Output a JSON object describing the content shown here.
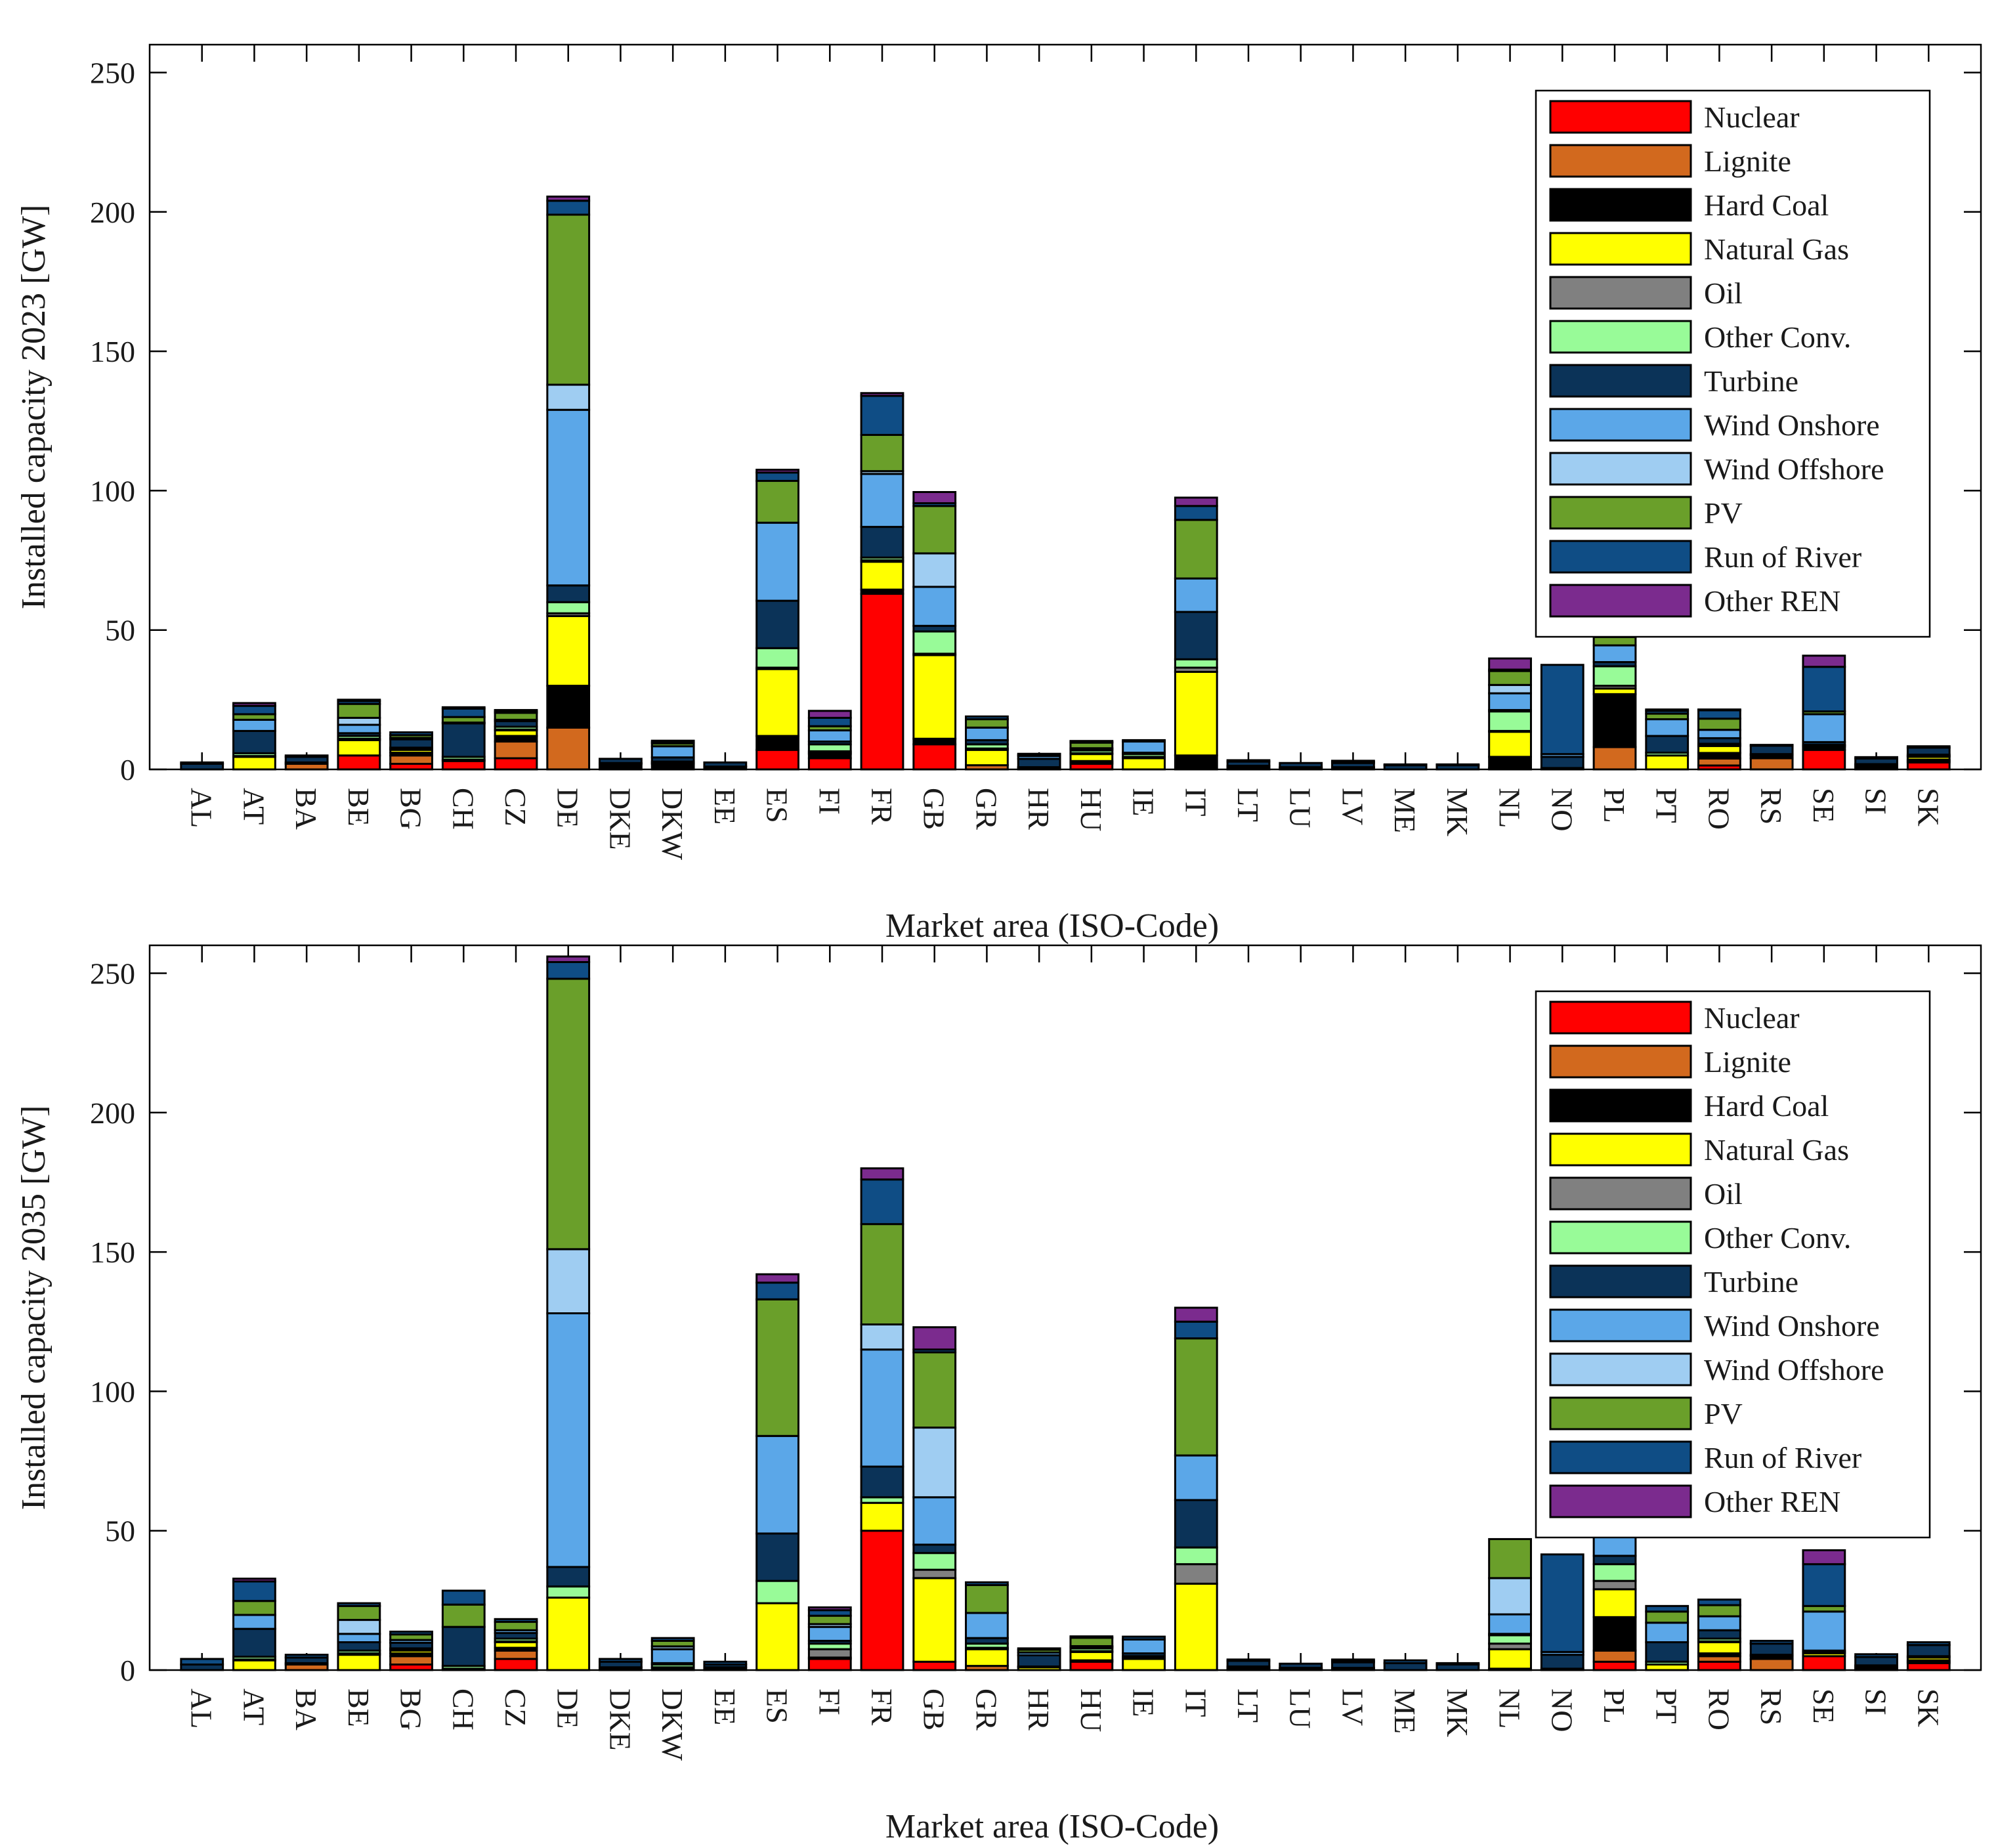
{
  "legend": [
    {
      "name": "Nuclear",
      "color": "#ff0000"
    },
    {
      "name": "Lignite",
      "color": "#d2691e"
    },
    {
      "name": "Hard Coal",
      "color": "#000000"
    },
    {
      "name": "Natural Gas",
      "color": "#ffff00"
    },
    {
      "name": "Oil",
      "color": "#808080"
    },
    {
      "name": "Other Conv.",
      "color": "#98fb98"
    },
    {
      "name": "Turbine",
      "color": "#0b3358"
    },
    {
      "name": "Wind Onshore",
      "color": "#5ba7e8"
    },
    {
      "name": "Wind Offshore",
      "color": "#9fcdf2"
    },
    {
      "name": "PV",
      "color": "#6a9f2a"
    },
    {
      "name": "Run of River",
      "color": "#0f4d85"
    },
    {
      "name": "Other REN",
      "color": "#7b2b8e"
    }
  ],
  "chart_data": [
    {
      "type": "bar",
      "stacked": true,
      "title": "",
      "xlabel": "Market area (ISO-Code)",
      "ylabel": "Installed capacity 2023 [GW]",
      "ylim": [
        0,
        260
      ],
      "yticks": [
        0,
        50,
        100,
        150,
        200,
        250
      ],
      "legend_position": "top-right",
      "categories": [
        "AL",
        "AT",
        "BA",
        "BE",
        "BG",
        "CH",
        "CZ",
        "DE",
        "DKE",
        "DKW",
        "EE",
        "ES",
        "FI",
        "FR",
        "GB",
        "GR",
        "HR",
        "HU",
        "IE",
        "IT",
        "LT",
        "LU",
        "LV",
        "ME",
        "MK",
        "NL",
        "NO",
        "PL",
        "PT",
        "RO",
        "RS",
        "SE",
        "SI",
        "SK"
      ],
      "series": [
        {
          "name": "Nuclear",
          "values": [
            0,
            0,
            0,
            5,
            2,
            3,
            4,
            0,
            0,
            0,
            0,
            7,
            4,
            63,
            9,
            0,
            0,
            2,
            0,
            0,
            0,
            0,
            0,
            0,
            0,
            0.5,
            0,
            0,
            0,
            1.4,
            0,
            7,
            0.7,
            2.5
          ]
        },
        {
          "name": "Lignite",
          "values": [
            0,
            0,
            2,
            0,
            3,
            0,
            6,
            15,
            0,
            0,
            0,
            0,
            0,
            0,
            0,
            1.5,
            0,
            0.5,
            0,
            0,
            0,
            0,
            0,
            0,
            0,
            0,
            0,
            8,
            0,
            2.5,
            4,
            0,
            0.7,
            0.5
          ]
        },
        {
          "name": "Hard Coal",
          "values": [
            0,
            0,
            0.5,
            0,
            1,
            0,
            2,
            15,
            2,
            2,
            1,
            5,
            1.5,
            1.5,
            2,
            0,
            0,
            0.5,
            0,
            5,
            0.5,
            0,
            0.5,
            0,
            0,
            4,
            0,
            19,
            0,
            2,
            1,
            1,
            0.5,
            0.5
          ]
        },
        {
          "name": "Natural Gas",
          "values": [
            0,
            4.5,
            0,
            5.5,
            1,
            0.5,
            2,
            25,
            0,
            0,
            0,
            24,
            0.5,
            10,
            30,
            5.5,
            0.5,
            2.5,
            4,
            30,
            0.5,
            0.5,
            0,
            0,
            0,
            9,
            0.5,
            2,
            5,
            2.5,
            0.5,
            0.5,
            0,
            1
          ]
        },
        {
          "name": "Oil",
          "values": [
            0,
            0.3,
            0,
            0.5,
            0.3,
            0,
            0.3,
            1,
            0.3,
            0.3,
            0,
            0.5,
            0.5,
            0.5,
            0.5,
            0.5,
            0,
            0.3,
            0.5,
            1.5,
            0,
            0,
            0,
            0,
            0,
            0.3,
            0,
            1,
            0,
            0.3,
            0,
            0.3,
            0,
            0.3
          ]
        },
        {
          "name": "Other Conv.",
          "values": [
            0,
            1,
            0,
            1,
            0.5,
            1,
            1,
            4,
            0,
            0.5,
            0,
            7,
            2.5,
            1,
            8,
            1.5,
            0.3,
            1,
            1,
            3,
            0.3,
            0.3,
            0.3,
            0,
            0,
            7,
            0,
            7,
            1,
            0.5,
            0,
            0,
            0,
            0.5
          ]
        },
        {
          "name": "Turbine",
          "values": [
            2,
            8,
            2,
            1,
            3,
            12,
            2,
            6,
            1.5,
            1.5,
            1.5,
            17,
            1,
            11,
            2,
            1.5,
            3,
            0.5,
            0.5,
            17,
            1.5,
            1.5,
            1.5,
            1.5,
            1.5,
            0.5,
            4,
            1.5,
            6,
            2,
            3,
            1,
            2,
            2.5
          ]
        },
        {
          "name": "Wind Onshore",
          "values": [
            0,
            4,
            0,
            3,
            0.5,
            0.3,
            0.5,
            63,
            0,
            4,
            0,
            28,
            4,
            19,
            14,
            4.5,
            1,
            0.3,
            4,
            12,
            0,
            0,
            0,
            0,
            0,
            6,
            1,
            6,
            6,
            3,
            0,
            10,
            0,
            0
          ]
        },
        {
          "name": "Wind Offshore",
          "values": [
            0,
            0,
            0,
            2.5,
            0,
            0,
            0,
            9,
            0,
            0,
            0,
            0,
            0,
            1,
            12,
            0,
            0,
            0,
            0,
            0,
            0,
            0,
            0,
            0,
            0,
            3,
            0,
            0,
            0,
            0,
            0,
            0,
            0,
            0
          ]
        },
        {
          "name": "PV",
          "values": [
            0,
            2,
            0,
            5,
            1,
            2,
            2.5,
            61,
            0,
            1,
            0,
            15,
            1.5,
            13,
            17,
            3,
            0.5,
            2,
            0,
            21,
            0.5,
            0,
            0.5,
            0,
            0,
            5,
            0,
            3,
            2,
            4,
            0,
            1,
            0,
            0
          ]
        },
        {
          "name": "Run of River",
          "values": [
            0.5,
            3,
            0.5,
            1,
            1,
            3,
            0.5,
            5,
            0,
            0.5,
            0,
            3,
            3,
            14,
            1,
            1,
            0.3,
            0.3,
            0.5,
            5,
            0,
            0,
            0.3,
            0.3,
            0.3,
            0.5,
            32,
            0.3,
            1,
            3,
            0.3,
            16,
            0.5,
            0.5
          ]
        },
        {
          "name": "Other REN",
          "values": [
            0,
            1,
            0,
            0.5,
            0,
            0.5,
            0.5,
            1.5,
            0,
            0.5,
            0,
            1,
            2.5,
            1,
            4,
            0,
            0,
            0.3,
            0,
            3,
            0,
            0,
            0,
            0,
            0,
            4,
            0,
            2,
            0.5,
            0.3,
            0,
            4,
            0,
            0
          ]
        }
      ]
    },
    {
      "type": "bar",
      "stacked": true,
      "title": "",
      "xlabel": "Market area (ISO-Code)",
      "ylabel": "Installed capacity 2035 [GW]",
      "ylim": [
        0,
        260
      ],
      "yticks": [
        0,
        50,
        100,
        150,
        200,
        250
      ],
      "legend_position": "top-right",
      "categories": [
        "AL",
        "AT",
        "BA",
        "BE",
        "BG",
        "CH",
        "CZ",
        "DE",
        "DKE",
        "DKW",
        "EE",
        "ES",
        "FI",
        "FR",
        "GB",
        "GR",
        "HR",
        "HU",
        "IE",
        "IT",
        "LT",
        "LU",
        "LV",
        "ME",
        "MK",
        "NL",
        "NO",
        "PL",
        "PT",
        "RO",
        "RS",
        "SE",
        "SI",
        "SK"
      ],
      "series": [
        {
          "name": "Nuclear",
          "values": [
            0,
            0,
            0,
            0,
            2,
            0,
            4,
            0,
            0,
            0,
            0,
            0,
            4,
            50,
            3,
            0,
            0,
            3,
            0,
            0,
            0,
            0,
            0,
            0,
            0,
            0.5,
            0,
            3,
            0,
            3,
            0,
            5,
            0.7,
            2.5
          ]
        },
        {
          "name": "Lignite",
          "values": [
            0,
            0,
            2,
            0,
            3,
            0,
            3,
            0,
            0,
            0,
            0,
            0,
            0,
            0,
            0,
            1.5,
            0,
            0.5,
            0,
            0,
            0,
            0,
            0,
            0,
            0,
            0,
            0,
            4,
            0,
            2,
            4,
            0,
            0.5,
            0.5
          ]
        },
        {
          "name": "Hard Coal",
          "values": [
            0,
            0,
            0.5,
            0,
            1,
            0,
            1,
            0,
            1,
            1,
            1,
            0,
            0,
            0,
            0,
            0,
            0,
            0,
            0,
            0,
            0.5,
            0,
            0.5,
            0,
            0,
            0,
            0,
            12,
            0,
            1,
            1,
            0,
            0.5,
            0.5
          ]
        },
        {
          "name": "Natural Gas",
          "values": [
            0,
            3.5,
            0,
            5.5,
            1,
            0.5,
            2,
            26,
            0,
            0,
            0,
            24,
            0.5,
            10,
            30,
            6,
            1,
            3,
            4,
            31,
            0.5,
            0.5,
            0,
            0,
            0,
            7,
            0.5,
            10,
            2,
            4,
            0.5,
            1,
            0,
            1
          ]
        },
        {
          "name": "Oil",
          "values": [
            0,
            0.3,
            0,
            0.5,
            0.3,
            0,
            0.3,
            0,
            0,
            0,
            0,
            0,
            3,
            0,
            3,
            0.5,
            0,
            0.3,
            0.5,
            7,
            0,
            0,
            0,
            0,
            0,
            2,
            0,
            3,
            0,
            0.3,
            0,
            0,
            0,
            0
          ]
        },
        {
          "name": "Other Conv.",
          "values": [
            0,
            1,
            0,
            1,
            0.5,
            1,
            1,
            4,
            0,
            1,
            0,
            8,
            2,
            2,
            6,
            1.5,
            0.3,
            1,
            0.5,
            6,
            0.3,
            0.3,
            0.3,
            0,
            0,
            3,
            0,
            6,
            1,
            1,
            0,
            0.5,
            0,
            0.5
          ]
        },
        {
          "name": "Turbine",
          "values": [
            2,
            10,
            2,
            3,
            2,
            14,
            2,
            7,
            2,
            0.5,
            1,
            17,
            1,
            11,
            3,
            2,
            4,
            0.5,
            1,
            17,
            2,
            1.5,
            2,
            2.5,
            2,
            0.5,
            5,
            3,
            7,
            3,
            4,
            0.5,
            3,
            4
          ]
        },
        {
          "name": "Wind Onshore",
          "values": [
            0,
            5,
            0,
            3,
            1,
            0,
            1,
            91,
            0,
            5,
            0,
            35,
            5,
            42,
            17,
            9,
            1,
            0.3,
            5,
            16,
            0,
            0,
            0,
            0,
            0,
            7,
            1,
            8,
            7,
            5,
            0,
            14,
            0,
            0
          ]
        },
        {
          "name": "Wind Offshore",
          "values": [
            0,
            0,
            0,
            5,
            0,
            0,
            0,
            23,
            0,
            1,
            0,
            0,
            1,
            9,
            25,
            0,
            0,
            0,
            0,
            0,
            0,
            0,
            0,
            0,
            0,
            13,
            0,
            0,
            0,
            0,
            0,
            0,
            0,
            0
          ]
        },
        {
          "name": "PV",
          "values": [
            0,
            5,
            0,
            5,
            2,
            8,
            3,
            97,
            0,
            2,
            0,
            49,
            3,
            36,
            27,
            10,
            1,
            3,
            0,
            42,
            0.5,
            0,
            0.5,
            0,
            0,
            14,
            0,
            0,
            4,
            4,
            0,
            2,
            0,
            0
          ]
        },
        {
          "name": "Run of River",
          "values": [
            2,
            7,
            1,
            1,
            1,
            5,
            1,
            6,
            1,
            1,
            1,
            6,
            2,
            16,
            1,
            1,
            0.5,
            0.5,
            1,
            6,
            0,
            0,
            0.5,
            1,
            0.5,
            0,
            35,
            0,
            2,
            2,
            1,
            15,
            1,
            1
          ]
        },
        {
          "name": "Other REN",
          "values": [
            0,
            1,
            0,
            0,
            0,
            0,
            0,
            2,
            0,
            0,
            0,
            3,
            1,
            4,
            8,
            0,
            0,
            0,
            0,
            5,
            0,
            0,
            0,
            0,
            0,
            0,
            0,
            0,
            0,
            0,
            0,
            5,
            0,
            0
          ]
        }
      ]
    }
  ]
}
